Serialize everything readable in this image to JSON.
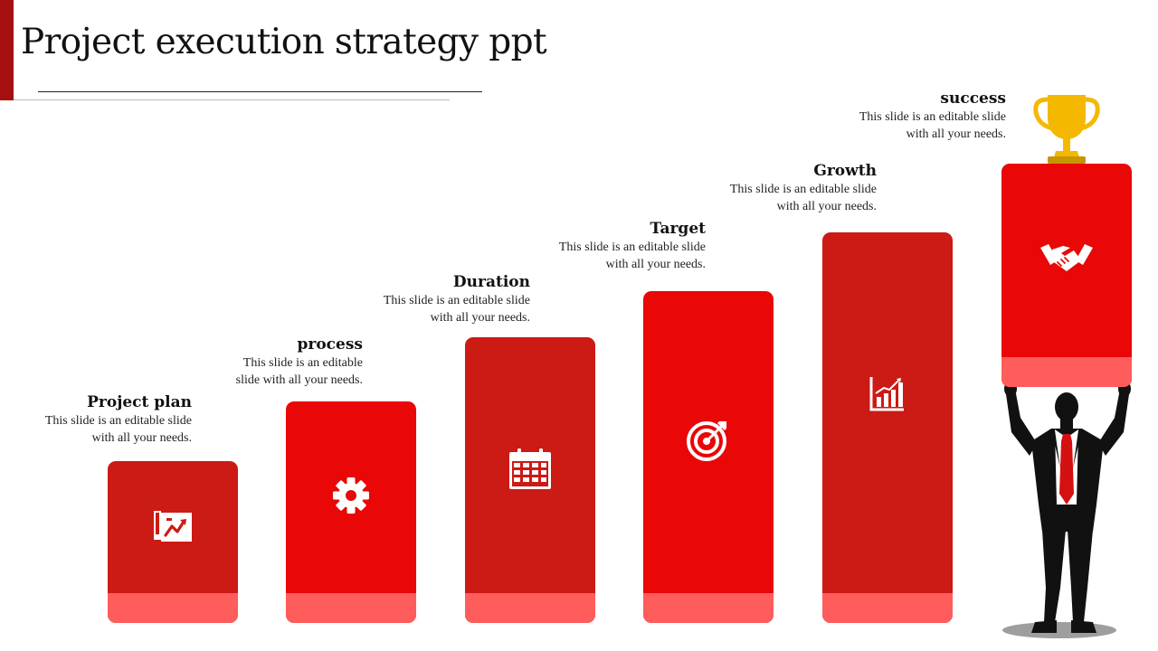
{
  "title": "Project execution strategy ppt",
  "colors": {
    "accent": "#a50f0f",
    "bar_dark": "#cc1a14",
    "bar_bright": "#e90707",
    "bar_base": "#ff5c5c",
    "trophy": "#f5b800"
  },
  "steps": [
    {
      "title": "Project plan",
      "text": "This slide is an editable slide with all your needs.",
      "icon": "project-plan-icon"
    },
    {
      "title": "process",
      "text": "This slide is an editable slide with all your needs.",
      "icon": "gear-icon"
    },
    {
      "title": "Duration",
      "text": "This slide is an editable slide with all your needs.",
      "icon": "calendar-icon"
    },
    {
      "title": "Target",
      "text": "This slide is an editable slide with all your needs.",
      "icon": "target-icon"
    },
    {
      "title": "Growth",
      "text": "This slide is an editable slide with all your needs.",
      "icon": "growth-chart-icon"
    },
    {
      "title": "success",
      "text": "This slide is an editable slide with all your needs.",
      "icon": "handshake-icon"
    }
  ],
  "decorations": {
    "trophy_icon": "trophy-icon",
    "person_icon": "businessman-silhouette"
  }
}
